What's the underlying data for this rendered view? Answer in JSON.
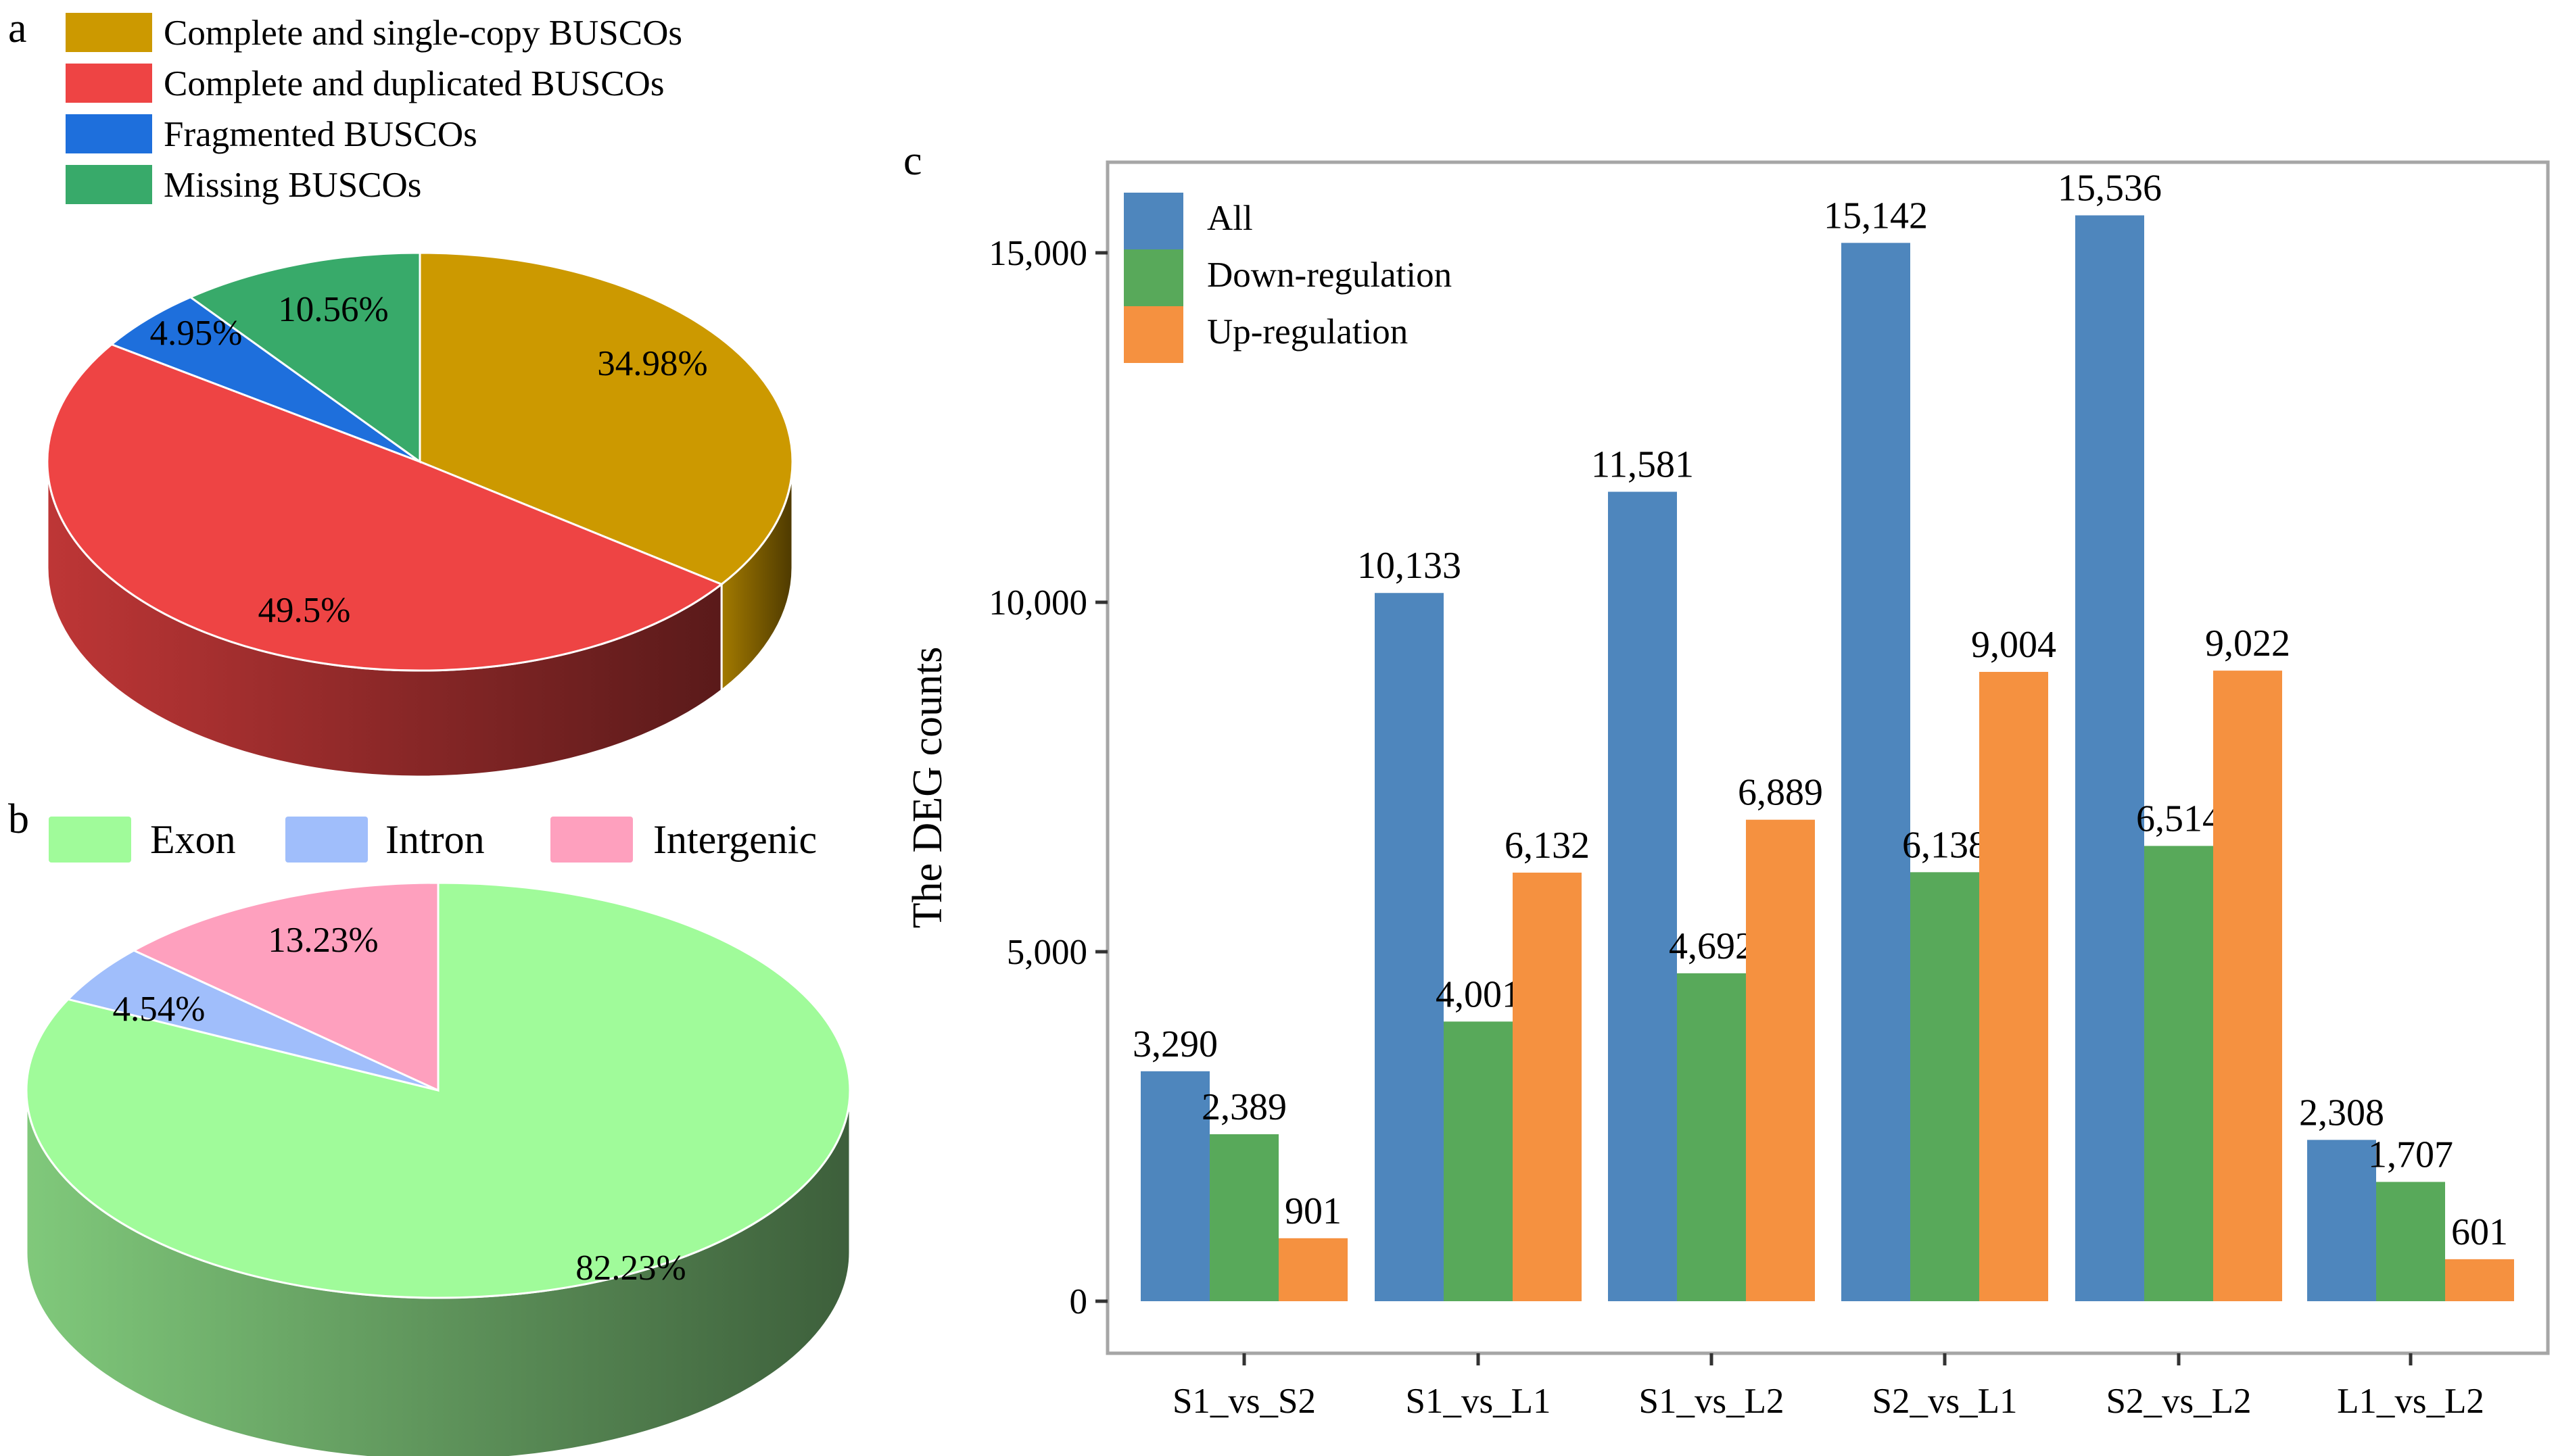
{
  "panels": {
    "a": {
      "letter": "a"
    },
    "b": {
      "letter": "b"
    },
    "c": {
      "letter": "c"
    }
  },
  "chart_data": [
    {
      "id": "a",
      "type": "pie",
      "style": "3d",
      "title": "",
      "legend_position": "top-left",
      "slices": [
        {
          "label": "Complete and single-copy BUSCOs",
          "value": 34.98,
          "display": "34.98%",
          "color": "#CC9900"
        },
        {
          "label": "Complete and duplicated BUSCOs",
          "value": 49.5,
          "display": "49.5%",
          "color": "#EE4444"
        },
        {
          "label": "Fragmented BUSCOs",
          "value": 4.95,
          "display": "4.95%",
          "color": "#1E6FDC"
        },
        {
          "label": "Missing BUSCOs",
          "value": 10.56,
          "display": "10.56%",
          "color": "#38AA6A"
        }
      ]
    },
    {
      "id": "b",
      "type": "pie",
      "style": "3d",
      "title": "",
      "legend_position": "top",
      "slices": [
        {
          "label": "Exon",
          "value": 82.23,
          "display": "82.23%",
          "color": "#A0FB9A"
        },
        {
          "label": "Intron",
          "value": 4.54,
          "display": "4.54%",
          "color": "#A0BEFB"
        },
        {
          "label": "Intergenic",
          "value": 13.23,
          "display": "13.23%",
          "color": "#FEA0BE"
        }
      ]
    },
    {
      "id": "c",
      "type": "bar",
      "title": "",
      "xlabel": "",
      "ylabel": "The DEG counts",
      "ylim": [
        0,
        16000
      ],
      "yticks": [
        0,
        5000,
        10000,
        15000
      ],
      "ytick_labels": [
        "0",
        "5,000",
        "10,000",
        "15,000"
      ],
      "grid": false,
      "legend_position": "top-left",
      "categories": [
        "S1_vs_S2",
        "S1_vs_L1",
        "S1_vs_L2",
        "S2_vs_L1",
        "S2_vs_L2",
        "L1_vs_L2"
      ],
      "series": [
        {
          "name": "All",
          "color": "#4E86BD",
          "values": [
            3290,
            10133,
            11581,
            15142,
            15536,
            2308
          ],
          "labels": [
            "3,290",
            "10,133",
            "11,581",
            "15,142",
            "15,536",
            "2,308"
          ]
        },
        {
          "name": "Down-regulation",
          "color": "#58A95A",
          "values": [
            2389,
            4001,
            4692,
            6138,
            6514,
            1707
          ],
          "labels": [
            "2,389",
            "4,001",
            "4,692",
            "6,138",
            "6,514",
            "1,707"
          ]
        },
        {
          "name": "Up-regulation",
          "color": "#F59140",
          "values": [
            901,
            6132,
            6889,
            9004,
            9022,
            601
          ],
          "labels": [
            "901",
            "6,132",
            "6,889",
            "9,004",
            "9,022",
            "601"
          ]
        }
      ]
    }
  ]
}
